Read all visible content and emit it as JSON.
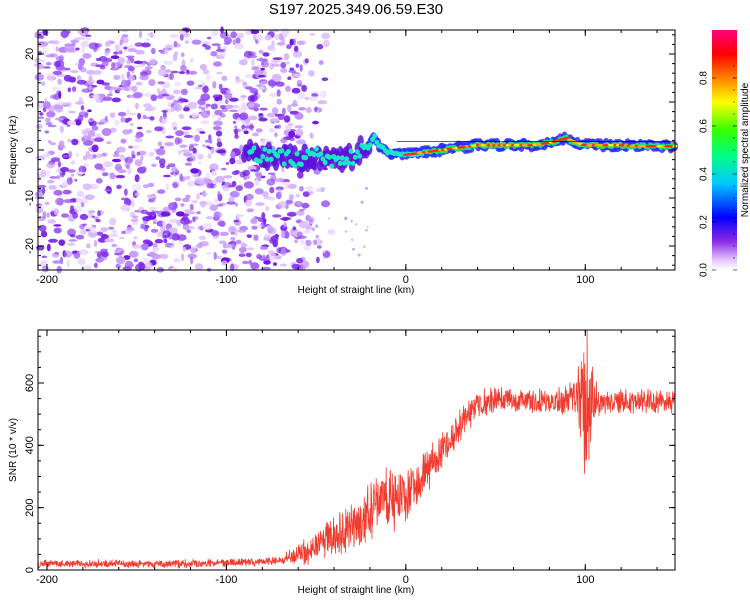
{
  "figure": {
    "title": "S197.2025.349.06.59.E30"
  },
  "chart_data": [
    {
      "type": "heatmap",
      "name": "spectrogram",
      "title": "S197.2025.349.06.59.E30",
      "xlabel": "Height of straight line (km)",
      "ylabel": "Frequency (Hz)",
      "xlim": [
        -205,
        150
      ],
      "ylim": [
        -25,
        25
      ],
      "x_ticks": [
        -200,
        -100,
        0,
        100
      ],
      "x_tick_labels": [
        "-200",
        "-100",
        "0",
        "100"
      ],
      "y_ticks": [
        -20,
        -10,
        0,
        10,
        20
      ],
      "y_tick_labels": [
        "-20",
        "-10",
        "0",
        "10",
        "20"
      ],
      "noise_region_x": [
        -205,
        -65
      ],
      "signal_ridge": {
        "x": [
          -90,
          -80,
          -70,
          -60,
          -50,
          -40,
          -30,
          -25,
          -20,
          -18,
          -15,
          -10,
          -5,
          0,
          10,
          20,
          30,
          40,
          50,
          60,
          70,
          80,
          85,
          90,
          92,
          95,
          100,
          110,
          120,
          130,
          140,
          150
        ],
        "frequency": [
          0,
          -1,
          -1.5,
          -2,
          -1,
          -2,
          -1.5,
          0,
          1,
          3,
          1,
          -0.5,
          -1,
          -1,
          -0.5,
          0,
          0.5,
          1,
          1,
          1,
          1,
          1.5,
          2,
          2.5,
          2,
          1.5,
          1,
          1,
          1,
          0.8,
          0.8,
          0.8
        ]
      },
      "colorbar": {
        "label": "Normalized spectral amplitude",
        "range": [
          0,
          1
        ],
        "ticks": [
          0.0,
          0.2,
          0.4,
          0.6,
          0.8
        ],
        "tick_labels": [
          "0.0",
          "0.2",
          "0.4",
          "0.6",
          "0.8"
        ],
        "colormap": "hsv-rainbow"
      }
    },
    {
      "type": "line",
      "name": "snr-trace",
      "xlabel": "Height of straight line (km)",
      "ylabel": "SNR (10 * v/v)",
      "xlim": [
        -205,
        150
      ],
      "ylim": [
        0,
        770
      ],
      "x_ticks": [
        -200,
        -100,
        0,
        100
      ],
      "x_tick_labels": [
        "-200",
        "-100",
        "0",
        "100"
      ],
      "y_ticks": [
        0,
        200,
        400,
        600
      ],
      "y_tick_labels": [
        "0",
        "200",
        "400",
        "600"
      ],
      "line_color": "#f03c2e",
      "series": [
        {
          "name": "SNR",
          "x": [
            -205,
            -180,
            -150,
            -120,
            -90,
            -70,
            -60,
            -50,
            -40,
            -30,
            -20,
            -10,
            0,
            10,
            20,
            30,
            40,
            50,
            60,
            70,
            80,
            90,
            95,
            98,
            100,
            102,
            105,
            110,
            120,
            130,
            140,
            150
          ],
          "y": [
            20,
            20,
            20,
            20,
            25,
            30,
            50,
            80,
            110,
            140,
            180,
            220,
            230,
            300,
            380,
            470,
            530,
            545,
            540,
            540,
            540,
            545,
            550,
            540,
            540,
            540,
            540,
            535,
            540,
            540,
            540,
            540
          ],
          "noise_amplitude": [
            15,
            15,
            15,
            15,
            15,
            15,
            40,
            60,
            80,
            90,
            110,
            120,
            110,
            90,
            70,
            60,
            50,
            50,
            45,
            45,
            45,
            50,
            80,
            200,
            340,
            220,
            80,
            45,
            45,
            45,
            45,
            45
          ]
        }
      ]
    }
  ]
}
